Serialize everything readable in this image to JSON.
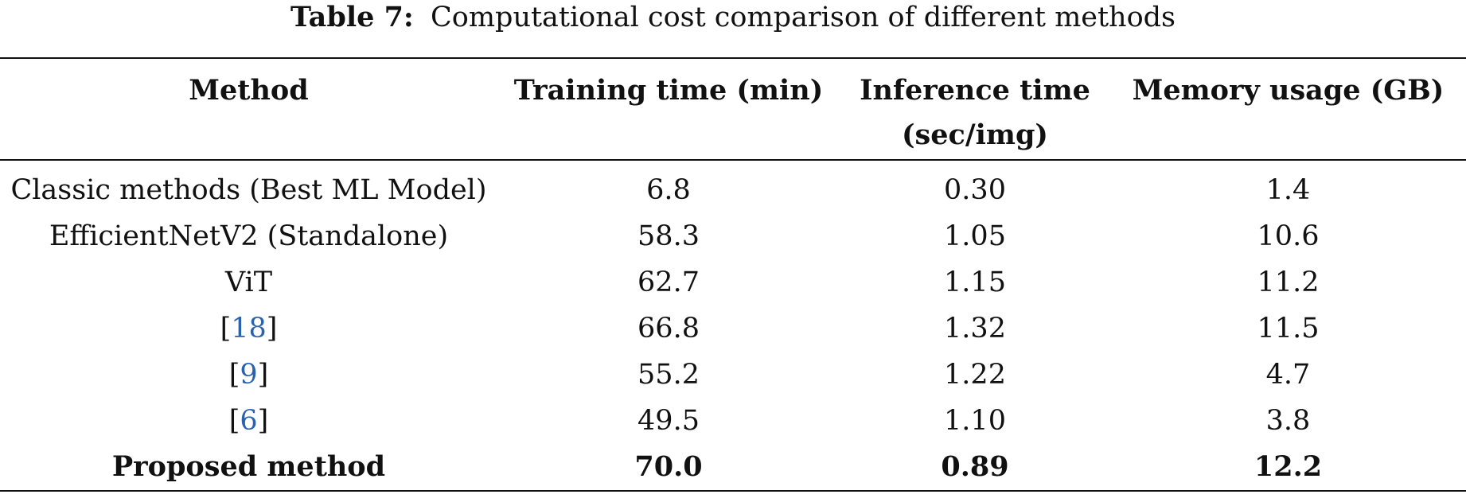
{
  "caption": {
    "label": "Table 7:",
    "text": "Computational cost comparison of different methods"
  },
  "table": {
    "headers": [
      "Method",
      "Training time (min)",
      "Inference time (sec/img)",
      "Memory usage (GB)"
    ],
    "rows": [
      {
        "method": "Classic methods (Best ML Model)",
        "training": "6.8",
        "inference": "0.30",
        "memory": "1.4"
      },
      {
        "method": "EfficientNetV2 (Standalone)",
        "training": "58.3",
        "inference": "1.05",
        "memory": "10.6"
      },
      {
        "method": "ViT",
        "training": "62.7",
        "inference": "1.15",
        "memory": "11.2"
      },
      {
        "method_ref": "18",
        "training": "66.8",
        "inference": "1.32",
        "memory": "11.5"
      },
      {
        "method_ref": "9",
        "training": "55.2",
        "inference": "1.22",
        "memory": "4.7"
      },
      {
        "method_ref": "6",
        "training": "49.5",
        "inference": "1.10",
        "memory": "3.8"
      },
      {
        "method": "Proposed method",
        "training": "70.0",
        "inference": "0.89",
        "memory": "12.2"
      }
    ]
  },
  "colors": {
    "text": "#111111",
    "citation": "#2a62ad"
  }
}
